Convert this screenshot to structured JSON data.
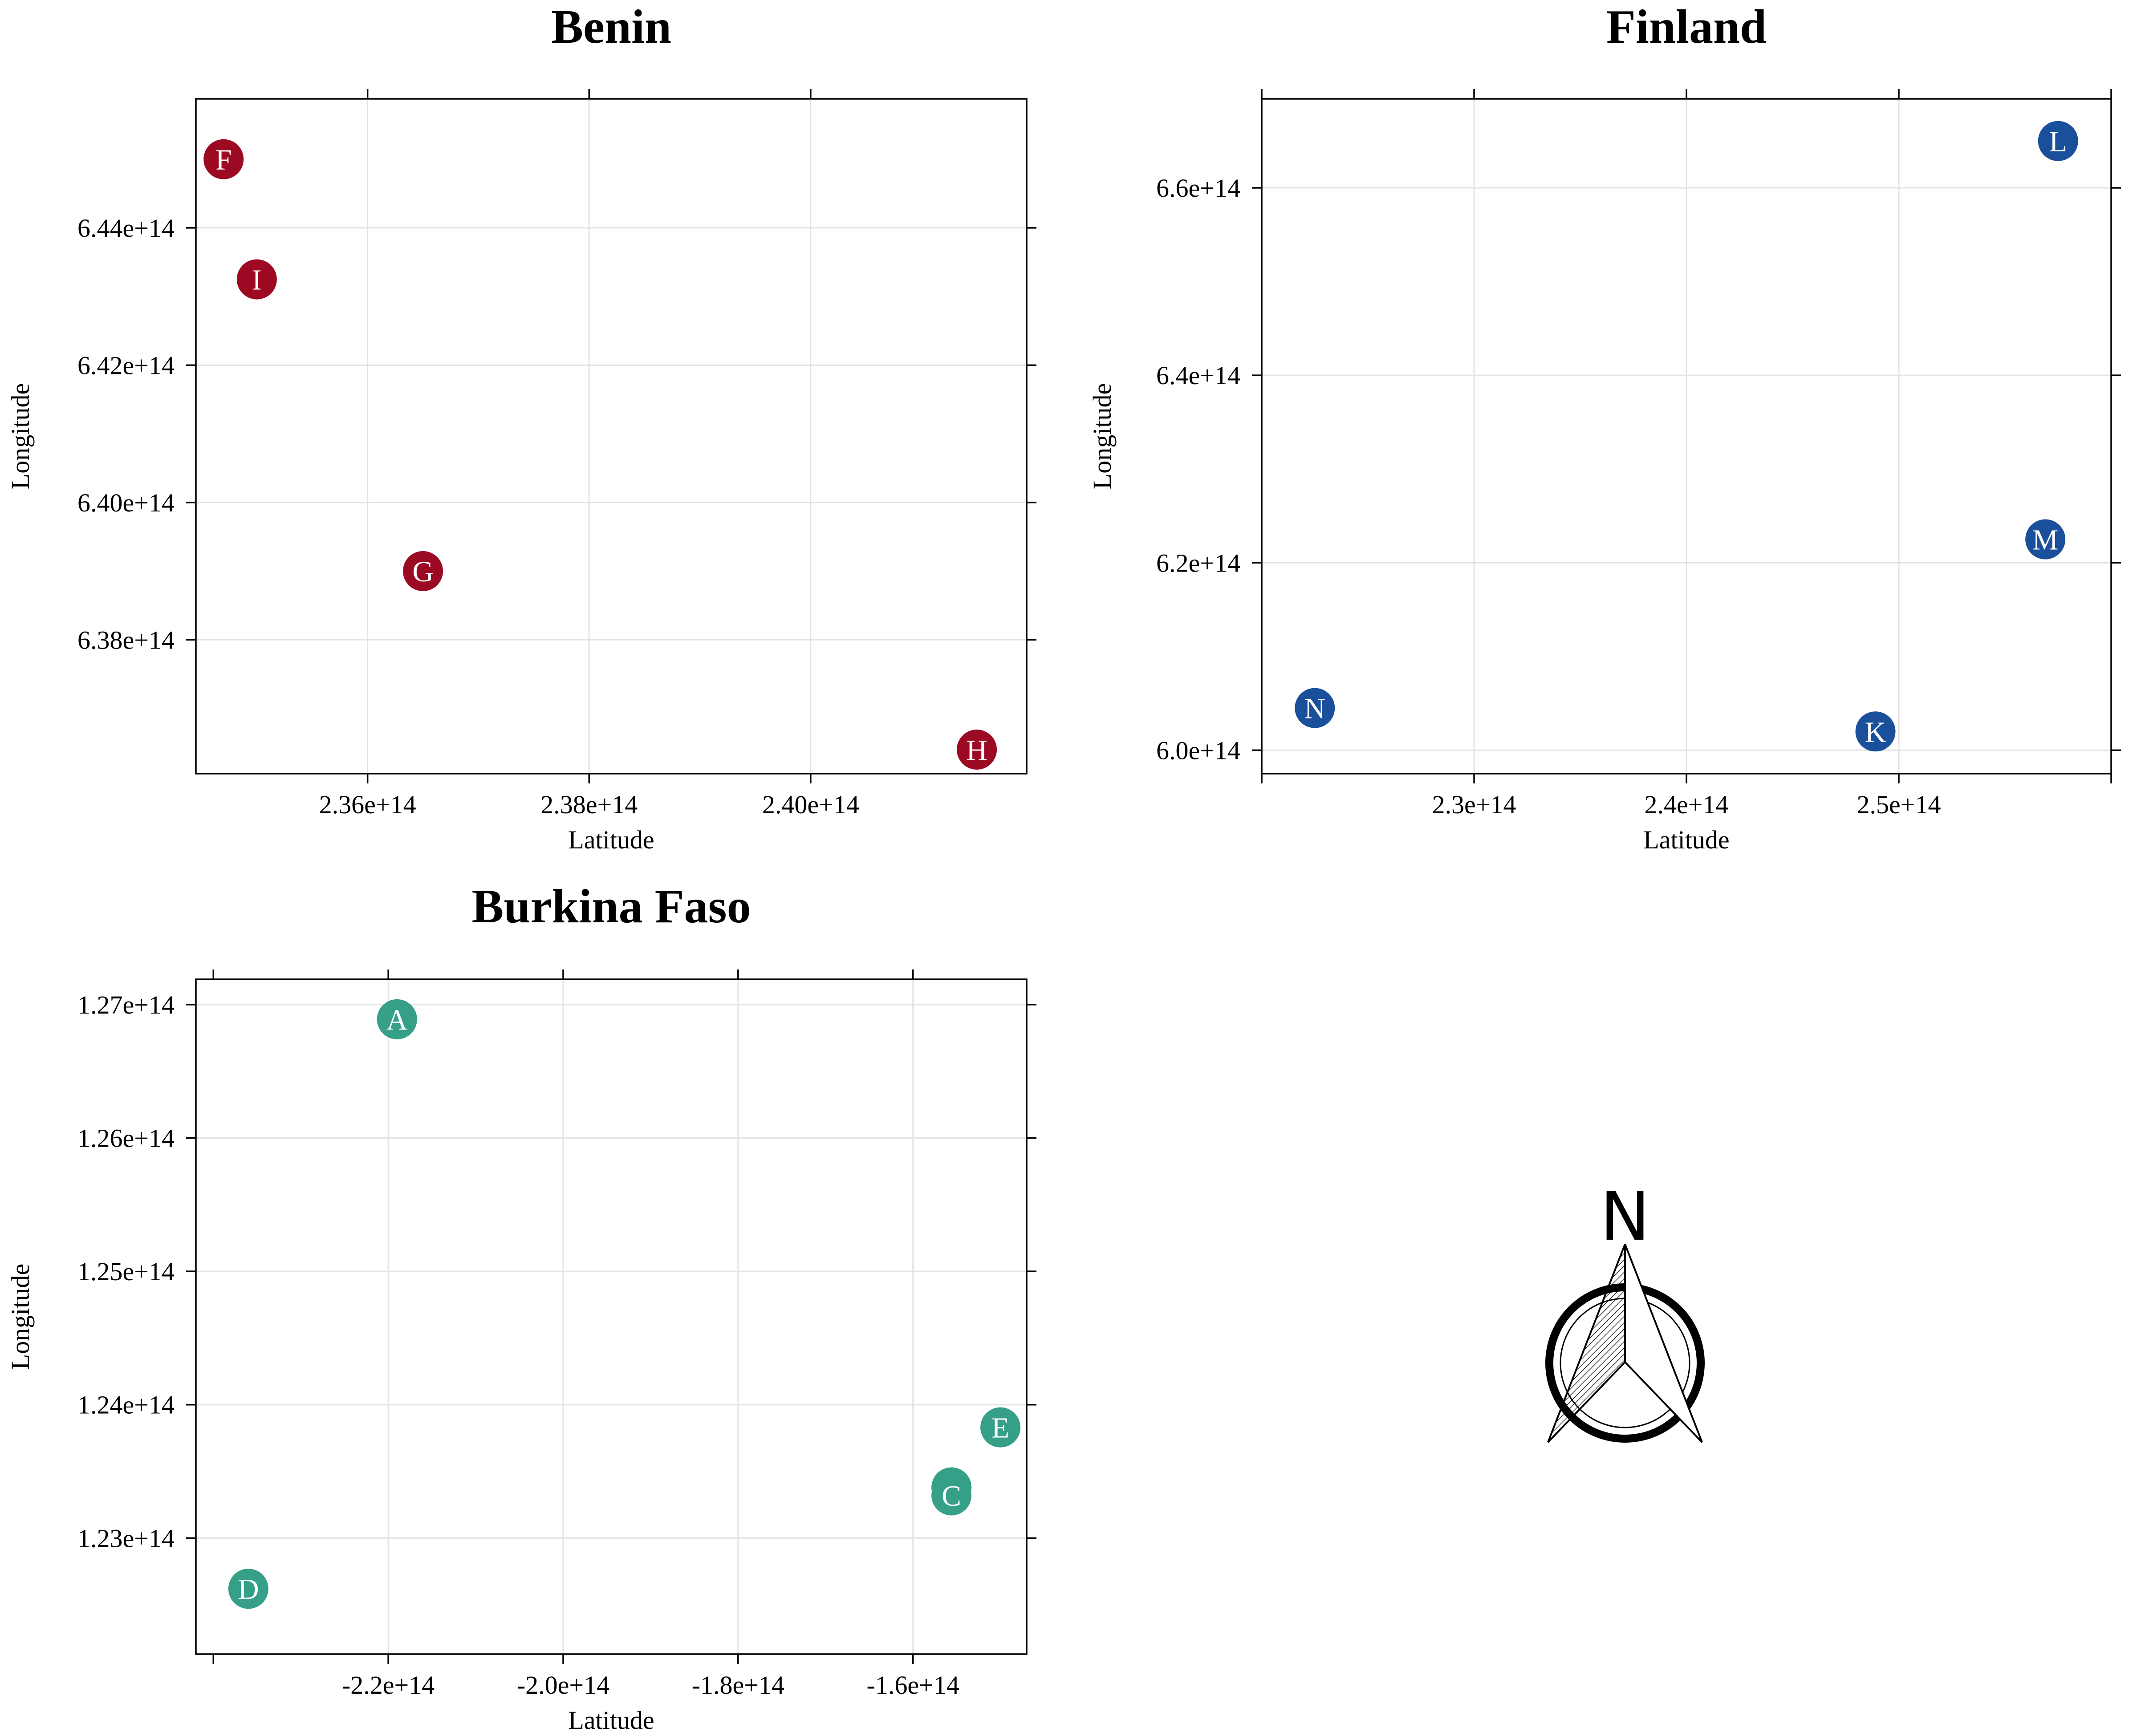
{
  "chart_data": [
    {
      "type": "scatter",
      "title": "Benin",
      "xlabel": "Latitude",
      "ylabel": "Longitude",
      "xlim": [
        234450000000000.0,
        241950000000000.0
      ],
      "ylim": [
        636050000000000.0,
        645880000000000.0
      ],
      "grid": true,
      "color": "#9b0a22",
      "x_ticks": [
        {
          "value": 236000000000000.0,
          "label": "2.36e+14"
        },
        {
          "value": 238000000000000.0,
          "label": "2.38e+14"
        },
        {
          "value": 240000000000000.0,
          "label": "2.40e+14"
        }
      ],
      "y_ticks": [
        {
          "value": 638000000000000.0,
          "label": "6.38e+14"
        },
        {
          "value": 640000000000000.0,
          "label": "6.40e+14"
        },
        {
          "value": 642000000000000.0,
          "label": "6.42e+14"
        },
        {
          "value": 644000000000000.0,
          "label": "6.44e+14"
        }
      ],
      "points": [
        {
          "label": "F",
          "x": 234700000000000.0,
          "y": 645000000000000.0
        },
        {
          "label": "I",
          "x": 235000000000000.0,
          "y": 643250000000000.0
        },
        {
          "label": "G",
          "x": 236500000000000.0,
          "y": 639000000000000.0
        },
        {
          "label": "H",
          "x": 241500000000000.0,
          "y": 636400000000000.0
        }
      ]
    },
    {
      "type": "scatter",
      "title": "Finland",
      "xlabel": "Latitude",
      "ylabel": "Longitude",
      "xlim": [
        220000000000000.0,
        260000000000000.0
      ],
      "ylim": [
        597500000000000.0,
        669500000000000.0
      ],
      "grid": true,
      "color": "#1a4f9c",
      "x_ticks": [
        {
          "value": 230000000000000.0,
          "label": "2.3e+14"
        },
        {
          "value": 240000000000000.0,
          "label": "2.4e+14"
        },
        {
          "value": 250000000000000.0,
          "label": "2.5e+14"
        }
      ],
      "y_ticks": [
        {
          "value": 600000000000000.0,
          "label": "6.0e+14"
        },
        {
          "value": 620000000000000.0,
          "label": "6.2e+14"
        },
        {
          "value": 640000000000000.0,
          "label": "6.4e+14"
        },
        {
          "value": 660000000000000.0,
          "label": "6.6e+14"
        }
      ],
      "points": [
        {
          "label": "L",
          "x": 257500000000000.0,
          "y": 665000000000000.0
        },
        {
          "label": "M",
          "x": 256900000000000.0,
          "y": 622500000000000.0
        },
        {
          "label": "N",
          "x": 222500000000000.0,
          "y": 604500000000000.0
        },
        {
          "label": "K",
          "x": 248900000000000.0,
          "y": 602000000000000.0
        }
      ]
    },
    {
      "type": "scatter",
      "title": "Burkina Faso",
      "xlabel": "Latitude",
      "ylabel": "Longitude",
      "xlim": [
        -242000000000000.0,
        -147000000000000.0
      ],
      "ylim": [
        122130000000000.0,
        127190000000000.0
      ],
      "grid": true,
      "color": "#359f88",
      "x_ticks": [
        {
          "value": -220000000000000.0,
          "label": "-2.2e+14"
        },
        {
          "value": -200000000000000.0,
          "label": "-2.0e+14"
        },
        {
          "value": -180000000000000.0,
          "label": "-1.8e+14"
        },
        {
          "value": -160000000000000.0,
          "label": "-1.6e+14"
        }
      ],
      "y_ticks": [
        {
          "value": 123000000000000.0,
          "label": "1.23e+14"
        },
        {
          "value": 124000000000000.0,
          "label": "1.24e+14"
        },
        {
          "value": 125000000000000.0,
          "label": "1.25e+14"
        },
        {
          "value": 126000000000000.0,
          "label": "1.26e+14"
        },
        {
          "value": 127000000000000.0,
          "label": "1.27e+14"
        }
      ],
      "points": [
        {
          "label": "A",
          "x": -219000000000000.0,
          "y": 126890000000000.0
        },
        {
          "label": "E",
          "x": -150000000000000.0,
          "y": 123830000000000.0
        },
        {
          "label": "B",
          "x": -155600000000000.0,
          "y": 123380000000000.0
        },
        {
          "label": "C",
          "x": -155600000000000.0,
          "y": 123320000000000.0
        },
        {
          "label": "D",
          "x": -236000000000000.0,
          "y": 122620000000000.0
        }
      ]
    }
  ],
  "north_arrow": {
    "letter": "N",
    "icon": "north-arrow-compass"
  }
}
